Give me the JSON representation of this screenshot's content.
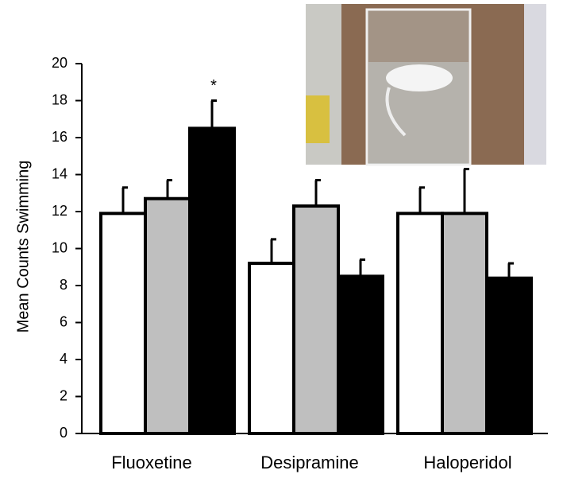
{
  "chart_data": {
    "type": "bar",
    "y_label": "Mean Counts Swimming",
    "annotation": "*",
    "categories": [
      "Fluoxetine",
      "Desipramine",
      "Haloperidol"
    ],
    "series": [
      {
        "color": "#ffffff",
        "values": [
          11.9,
          9.2,
          11.9
        ],
        "errors": [
          1.4,
          1.3,
          1.4
        ]
      },
      {
        "color": "#bfbfbf",
        "values": [
          12.7,
          12.3,
          11.9
        ],
        "errors": [
          1.0,
          1.4,
          2.4
        ]
      },
      {
        "color": "#000000",
        "values": [
          16.5,
          8.5,
          8.4
        ],
        "errors": [
          1.5,
          0.9,
          0.8
        ]
      }
    ],
    "ylim": [
      0,
      20
    ],
    "yticks": [
      0,
      2,
      4,
      6,
      8,
      10,
      12,
      14,
      16,
      18,
      20
    ]
  }
}
